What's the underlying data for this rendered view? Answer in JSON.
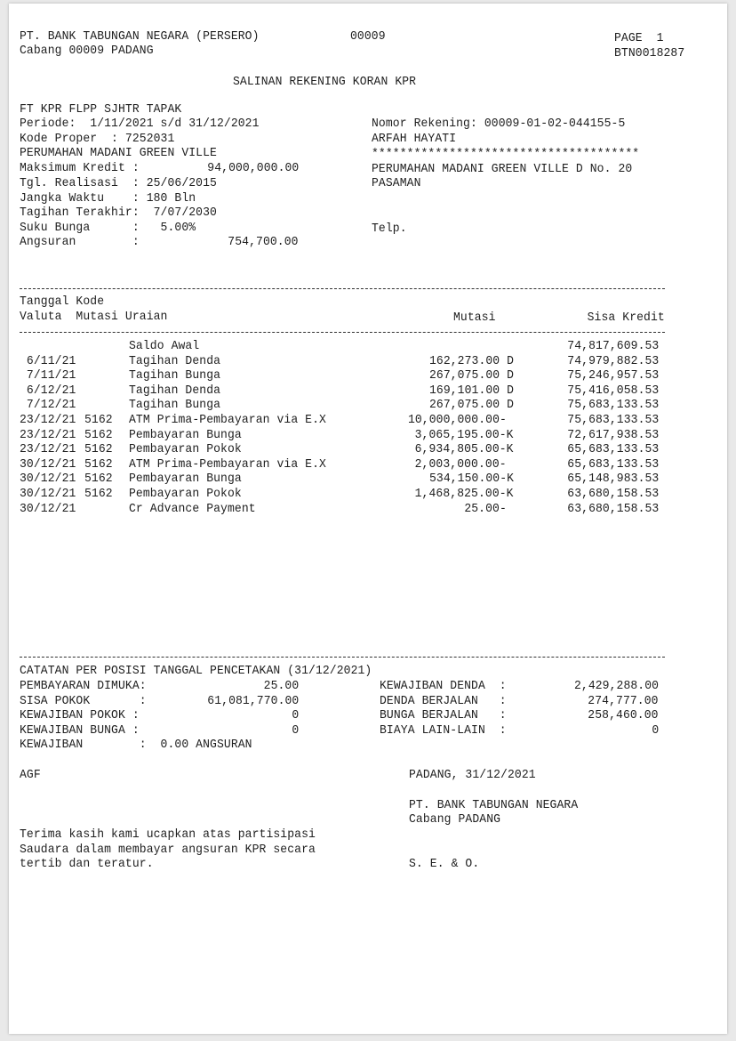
{
  "header": {
    "bank_name": "PT. BANK TABUNGAN NEGARA (PERSERO)",
    "branch_code": "00009",
    "branch": "Cabang 00009 PADANG",
    "page": "PAGE  1",
    "doc_code": "BTN0018287",
    "title": "SALINAN REKENING KORAN KPR"
  },
  "account": {
    "product": "FT KPR FLPP SJHTR TAPAK",
    "periode": "Periode:  1/11/2021 s/d 31/12/2021",
    "kode_proper": "Kode Proper  : 7252031",
    "project": "PERUMAHAN MADANI GREEN VILLE",
    "maks_kredit_label": "Maksimum Kredit :",
    "maks_kredit_value": "94,000,000.00",
    "tgl_realisasi": "Tgl. Realisasi  : 25/06/2015",
    "jangka_waktu": "Jangka Waktu    : 180 Bln",
    "tagihan_terakhir": "Tagihan Terakhir:  7/07/2030",
    "suku_bunga": "Suku Bunga      :   5.00%",
    "angsuran_label": "Angsuran        :",
    "angsuran_value": "754,700.00",
    "nomor_rekening": "Nomor Rekening: 00009-01-02-044155-5",
    "name": "ARFAH HAYATI",
    "stars": "**************************************",
    "address1": "PERUMAHAN MADANI GREEN VILLE D No. 20",
    "address2": "PASAMAN",
    "telp": "Telp."
  },
  "table": {
    "header_line1": "Tanggal Kode",
    "header_line2": "Valuta  Mutasi Uraian",
    "col_mutasi": "Mutasi",
    "col_sisa": "Sisa Kredit",
    "rows": [
      {
        "date": "",
        "kode": "",
        "uraian": "Saldo Awal",
        "mutasi": "",
        "sisa": "74,817,609.53"
      },
      {
        "date": " 6/11/21",
        "kode": "",
        "uraian": "Tagihan Denda",
        "mutasi": "162,273.00 D",
        "sisa": "74,979,882.53"
      },
      {
        "date": " 7/11/21",
        "kode": "",
        "uraian": "Tagihan Bunga",
        "mutasi": "267,075.00 D",
        "sisa": "75,246,957.53"
      },
      {
        "date": " 6/12/21",
        "kode": "",
        "uraian": "Tagihan Denda",
        "mutasi": "169,101.00 D",
        "sisa": "75,416,058.53"
      },
      {
        "date": " 7/12/21",
        "kode": "",
        "uraian": "Tagihan Bunga",
        "mutasi": "267,075.00 D",
        "sisa": "75,683,133.53"
      },
      {
        "date": "23/12/21",
        "kode": "5162",
        "uraian": "ATM Prima-Pembayaran via E.X",
        "mutasi": "10,000,000.00- ",
        "sisa": "75,683,133.53"
      },
      {
        "date": "23/12/21",
        "kode": "5162",
        "uraian": "Pembayaran Bunga",
        "mutasi": "3,065,195.00-K",
        "sisa": "72,617,938.53"
      },
      {
        "date": "23/12/21",
        "kode": "5162",
        "uraian": "Pembayaran Pokok",
        "mutasi": "6,934,805.00-K",
        "sisa": "65,683,133.53"
      },
      {
        "date": "30/12/21",
        "kode": "5162",
        "uraian": "ATM Prima-Pembayaran via E.X",
        "mutasi": "2,003,000.00- ",
        "sisa": "65,683,133.53"
      },
      {
        "date": "30/12/21",
        "kode": "5162",
        "uraian": "Pembayaran Bunga",
        "mutasi": "534,150.00-K",
        "sisa": "65,148,983.53"
      },
      {
        "date": "30/12/21",
        "kode": "5162",
        "uraian": "Pembayaran Pokok",
        "mutasi": "1,468,825.00-K",
        "sisa": "63,680,158.53"
      },
      {
        "date": "30/12/21",
        "kode": "",
        "uraian": "Cr Advance Payment",
        "mutasi": "25.00- ",
        "sisa": "63,680,158.53"
      }
    ]
  },
  "summary": {
    "title": "CATATAN PER POSISI TANGGAL PENCETAKAN (31/12/2021)",
    "left": [
      {
        "label": "PEMBAYARAN DIMUKA:",
        "value": "25.00"
      },
      {
        "label": "SISA POKOK       :",
        "value": "61,081,770.00"
      },
      {
        "label": "KEWAJIBAN POKOK :",
        "value": "0"
      },
      {
        "label": "KEWAJIBAN BUNGA :",
        "value": "0"
      }
    ],
    "kewajiban": "KEWAJIBAN        :  0.00 ANGSURAN",
    "right": [
      {
        "label": "KEWAJIBAN DENDA  :",
        "value": "2,429,288.00"
      },
      {
        "label": "DENDA BERJALAN   :",
        "value": "274,777.00"
      },
      {
        "label": "BUNGA BERJALAN   :",
        "value": "258,460.00"
      },
      {
        "label": "BIAYA LAIN-LAIN  :",
        "value": "0"
      }
    ]
  },
  "footer": {
    "operator": "AGF",
    "place_date": "PADANG, 31/12/2021",
    "signer1": "PT. BANK TABUNGAN NEGARA",
    "signer2": "Cabang PADANG",
    "thanks1": "Terima kasih kami ucapkan atas partisipasi",
    "thanks2": "Saudara dalam membayar angsuran KPR secara",
    "thanks3": "tertib dan teratur.",
    "seo": "S. E. & O."
  }
}
